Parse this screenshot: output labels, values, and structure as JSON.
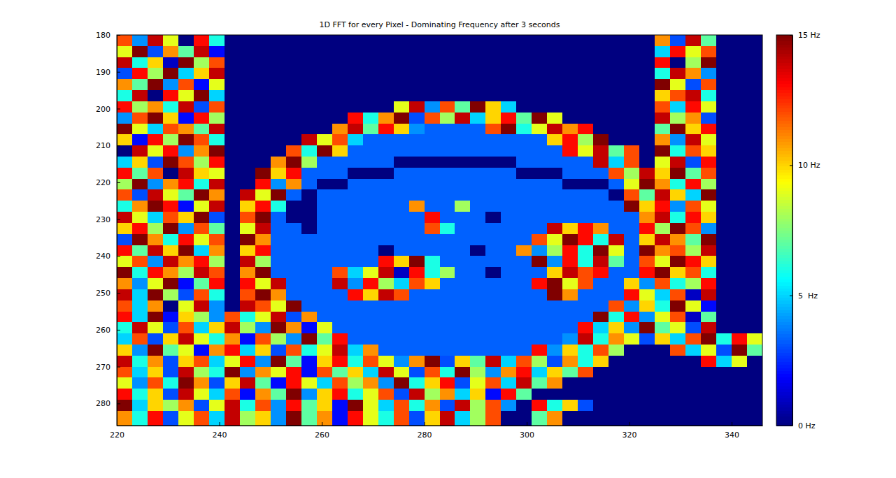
{
  "chart_data": {
    "type": "heatmap",
    "title": "1D FFT for every Pixel - Dominating Frequency after 3 seconds",
    "color": "jet",
    "xlim": [
      220,
      346
    ],
    "ylim": [
      180,
      286
    ],
    "xticks": [
      220,
      240,
      260,
      280,
      300,
      320,
      340
    ],
    "yticks": [
      180,
      190,
      200,
      210,
      220,
      230,
      240,
      250,
      260,
      270,
      280
    ],
    "x_edges": [
      220,
      223,
      226,
      229,
      232,
      235,
      238,
      241,
      244,
      247,
      250,
      253,
      256,
      259,
      262,
      265,
      268,
      271,
      274,
      277,
      280,
      283,
      286,
      289,
      292,
      295,
      298,
      301,
      304,
      307,
      310,
      313,
      316,
      319,
      322,
      325,
      328,
      331,
      334,
      337,
      340,
      343,
      346
    ],
    "y_edges": [
      180,
      183,
      186,
      189,
      192,
      195,
      198,
      201,
      204,
      207,
      210,
      213,
      216,
      219,
      222,
      225,
      228,
      231,
      234,
      237,
      240,
      243,
      246,
      249,
      252,
      255,
      258,
      261,
      264,
      267,
      270,
      273,
      276,
      279,
      282,
      286
    ],
    "colorbar": {
      "range": [
        0,
        15
      ],
      "ticks": [
        {
          "value": 0,
          "label": "0 Hz"
        },
        {
          "value": 5,
          "label": "5  Hz"
        },
        {
          "value": 10,
          "label": "10 Hz"
        },
        {
          "value": 15,
          "label": "15 Hz"
        }
      ]
    },
    "cells": [
      [
        12,
        4,
        14,
        9,
        0,
        13,
        6,
        0,
        0,
        0,
        0,
        0,
        0,
        0,
        0,
        0,
        0,
        0,
        0,
        0,
        0,
        0,
        0,
        0,
        0,
        0,
        0,
        0,
        0,
        0,
        0,
        0,
        0,
        0,
        0,
        11,
        3,
        14,
        7,
        0,
        0,
        0
      ],
      [
        9,
        15,
        3,
        11,
        7,
        14,
        2,
        0,
        0,
        0,
        0,
        0,
        0,
        0,
        0,
        0,
        0,
        0,
        0,
        0,
        0,
        0,
        0,
        0,
        0,
        0,
        0,
        0,
        0,
        0,
        0,
        0,
        0,
        0,
        0,
        5,
        13,
        9,
        12,
        0,
        0,
        0
      ],
      [
        14,
        6,
        10,
        1,
        15,
        8,
        12,
        0,
        0,
        0,
        0,
        0,
        0,
        0,
        0,
        0,
        0,
        0,
        0,
        0,
        0,
        0,
        0,
        0,
        0,
        0,
        0,
        0,
        0,
        0,
        0,
        0,
        0,
        0,
        0,
        13,
        0,
        8,
        15,
        0,
        0,
        0
      ],
      [
        3,
        13,
        8,
        15,
        5,
        10,
        14,
        0,
        0,
        0,
        0,
        0,
        0,
        0,
        0,
        0,
        0,
        0,
        0,
        0,
        0,
        0,
        0,
        0,
        0,
        0,
        0,
        0,
        0,
        0,
        0,
        0,
        0,
        0,
        0,
        6,
        14,
        11,
        4,
        0,
        0,
        0
      ],
      [
        11,
        7,
        15,
        4,
        12,
        2,
        9,
        0,
        0,
        0,
        0,
        0,
        0,
        0,
        0,
        0,
        0,
        0,
        0,
        0,
        0,
        0,
        0,
        0,
        0,
        0,
        0,
        0,
        0,
        0,
        0,
        0,
        0,
        0,
        0,
        15,
        9,
        3,
        12,
        0,
        0,
        0
      ],
      [
        6,
        14,
        0,
        13,
        9,
        15,
        5,
        0,
        0,
        0,
        0,
        0,
        0,
        0,
        0,
        0,
        0,
        0,
        0,
        0,
        0,
        0,
        0,
        0,
        0,
        0,
        0,
        0,
        0,
        0,
        0,
        0,
        0,
        0,
        0,
        10,
        12,
        14,
        6,
        0,
        0,
        0
      ],
      [
        13,
        8,
        11,
        6,
        14,
        3,
        12,
        0,
        0,
        0,
        0,
        0,
        0,
        0,
        0,
        0,
        0,
        0,
        9,
        14,
        4,
        12,
        7,
        15,
        10,
        5,
        0,
        0,
        0,
        0,
        0,
        0,
        0,
        0,
        0,
        12,
        5,
        13,
        9,
        0,
        0,
        0
      ],
      [
        4,
        12,
        15,
        10,
        2,
        13,
        8,
        0,
        0,
        0,
        0,
        0,
        0,
        0,
        0,
        13,
        6,
        11,
        15,
        3,
        12,
        8,
        14,
        5,
        10,
        13,
        7,
        15,
        9,
        0,
        0,
        0,
        0,
        0,
        0,
        14,
        8,
        11,
        3,
        0,
        0,
        0
      ],
      [
        15,
        9,
        5,
        12,
        11,
        7,
        14,
        0,
        0,
        0,
        0,
        0,
        0,
        0,
        11,
        14,
        7,
        13,
        10,
        4,
        3.3,
        3.3,
        3.3,
        3.3,
        12,
        15,
        6,
        9,
        14,
        11,
        13,
        0,
        0,
        0,
        0,
        7,
        15,
        10,
        13,
        0,
        0,
        0
      ],
      [
        10,
        2,
        13,
        8,
        15,
        12,
        6,
        0,
        0,
        0,
        0,
        0,
        14,
        9,
        12,
        5,
        3.3,
        3.3,
        3.3,
        3.3,
        3.3,
        3.3,
        3.3,
        3.3,
        3.3,
        3.3,
        3.3,
        3.3,
        10,
        13,
        8,
        15,
        0,
        0,
        0,
        11,
        4,
        14,
        9,
        0,
        0,
        0
      ],
      [
        0,
        14,
        9,
        13,
        4,
        11,
        15,
        0,
        0,
        0,
        0,
        12,
        6,
        15,
        10,
        3.3,
        3.3,
        3.3,
        3.3,
        3.3,
        3.3,
        3.3,
        3.3,
        3.3,
        3.3,
        3.3,
        3.3,
        3.3,
        3.3,
        13,
        9,
        14,
        7,
        12,
        0,
        15,
        6,
        12,
        10,
        0,
        0,
        0
      ],
      [
        5,
        10,
        3,
        15,
        12,
        8,
        13,
        0,
        0,
        0,
        11,
        15,
        8,
        3.3,
        3.3,
        3.3,
        3.3,
        3.3,
        0,
        0,
        0,
        0,
        0,
        0,
        0,
        0,
        3.3,
        3.3,
        3.3,
        3.3,
        3.3,
        14,
        5,
        12,
        0,
        9,
        14,
        3,
        13,
        0,
        0,
        0
      ],
      [
        13,
        7,
        12,
        0,
        14,
        10,
        9,
        0,
        0,
        15,
        10,
        13,
        3.3,
        3.3,
        3.3,
        0,
        0,
        0,
        3.3,
        3.3,
        3.3,
        3.3,
        3.3,
        3.3,
        3.3,
        3.3,
        0,
        0,
        0,
        3.3,
        3.3,
        3.3,
        12,
        8,
        14,
        10,
        15,
        7,
        12,
        0,
        0,
        0
      ],
      [
        8,
        15,
        4,
        11,
        13,
        6,
        14,
        0,
        0,
        13,
        4,
        11,
        3.3,
        0,
        0,
        3.3,
        3.3,
        3.3,
        3.3,
        3.3,
        3.3,
        3.3,
        3.3,
        3.3,
        3.3,
        3.3,
        3.3,
        3.3,
        3.3,
        0,
        0,
        0,
        3.3,
        9,
        15,
        11,
        6,
        13,
        8,
        0,
        0,
        0
      ],
      [
        12,
        3,
        14,
        9,
        7,
        15,
        11,
        0,
        14,
        9,
        15,
        3.3,
        0,
        3.3,
        3.3,
        3.3,
        3.3,
        3.3,
        3.3,
        3.3,
        3.3,
        3.3,
        3.3,
        3.3,
        3.3,
        3.3,
        3.3,
        3.3,
        3.3,
        3.3,
        3.3,
        3.3,
        0,
        12,
        7,
        14,
        10,
        5,
        15,
        0,
        0,
        0
      ],
      [
        6,
        11,
        15,
        13,
        2,
        9,
        14,
        0,
        10,
        13,
        6,
        0,
        0,
        3.3,
        3.3,
        3.3,
        3.3,
        3.3,
        3.3,
        11,
        3.3,
        3.3,
        8,
        3.3,
        3.3,
        3.3,
        3.3,
        3.3,
        3.3,
        3.3,
        3.3,
        3.3,
        3.3,
        15,
        10,
        13,
        4,
        12,
        9,
        0,
        0,
        0
      ],
      [
        14,
        9,
        5,
        12,
        10,
        15,
        3,
        0,
        12,
        15,
        3.3,
        0,
        0,
        3.3,
        3.3,
        3.3,
        3.3,
        3.3,
        3.3,
        3.3,
        13,
        3.3,
        3.3,
        3.3,
        0,
        3.3,
        3.3,
        3.3,
        3.3,
        3.3,
        3.3,
        3.3,
        3.3,
        3.3,
        11,
        14,
        6,
        13,
        10,
        0,
        0,
        0
      ],
      [
        10,
        13,
        8,
        15,
        4,
        12,
        7,
        0,
        9,
        14,
        3.3,
        3.3,
        0,
        3.3,
        3.3,
        3.3,
        3.3,
        3.3,
        3.3,
        3.3,
        12,
        6,
        3.3,
        3.3,
        3.3,
        3.3,
        3.3,
        3.3,
        14,
        10,
        13,
        11,
        3.3,
        3.3,
        13,
        8,
        15,
        12,
        4,
        0,
        0,
        0
      ],
      [
        3,
        15,
        11,
        6,
        13,
        9,
        12,
        0,
        15,
        11,
        3.3,
        3.3,
        3.3,
        3.3,
        3.3,
        3.3,
        3.3,
        3.3,
        3.3,
        3.3,
        3.3,
        3.3,
        3.3,
        3.3,
        3.3,
        3.3,
        3.3,
        12,
        9,
        15,
        13,
        6,
        14,
        3.3,
        10,
        14,
        11,
        7,
        15,
        0,
        0,
        0
      ],
      [
        13,
        7,
        14,
        10,
        15,
        5,
        11,
        0,
        10,
        13,
        3.3,
        3.3,
        3.3,
        3.3,
        3.3,
        3.3,
        3.3,
        0,
        3.3,
        3.3,
        3.3,
        3.3,
        3.3,
        0,
        3.3,
        3.3,
        11,
        4,
        8,
        13,
        6,
        15,
        9,
        3.3,
        15,
        11,
        12,
        8,
        14,
        0,
        0,
        0
      ],
      [
        9,
        12,
        4,
        14,
        11,
        13,
        8,
        0,
        14,
        8,
        3.3,
        3.3,
        3.3,
        3.3,
        3.3,
        3.3,
        3.3,
        13,
        10,
        15,
        6,
        3.3,
        3.3,
        3.3,
        3.3,
        3.3,
        3.3,
        15,
        4,
        13,
        6,
        14,
        7,
        3.3,
        12,
        9,
        15,
        13,
        10,
        0,
        0,
        0
      ],
      [
        15,
        6,
        13,
        11,
        8,
        14,
        12,
        0,
        11,
        15,
        3.3,
        3.3,
        3.3,
        3.3,
        12,
        5,
        9,
        14,
        1,
        13,
        6,
        8,
        3.3,
        3.3,
        0,
        3.3,
        3.3,
        3.3,
        10,
        14,
        12,
        13,
        3.3,
        3.3,
        13,
        15,
        10,
        12,
        6,
        0,
        0,
        0
      ],
      [
        11,
        4,
        9,
        15,
        2,
        7,
        13,
        0,
        13,
        9,
        14,
        3.3,
        3.3,
        3.3,
        14,
        4,
        13,
        8,
        5,
        12,
        10,
        3.3,
        3.3,
        3.3,
        3.3,
        3.3,
        3.3,
        13,
        15,
        9,
        12,
        3.3,
        3.3,
        10,
        4,
        12,
        6,
        8,
        13,
        0,
        0,
        0
      ],
      [
        14,
        5,
        15,
        8,
        3,
        12,
        6,
        0,
        12,
        15,
        11,
        3.3,
        3.3,
        3.3,
        3.3,
        13,
        10,
        14,
        12,
        3.3,
        3.3,
        3.3,
        3.3,
        3.3,
        3.3,
        3.3,
        3.3,
        3.3,
        15,
        11,
        3.3,
        3.3,
        3.3,
        13,
        9,
        5,
        12,
        1,
        14,
        0,
        0,
        0
      ],
      [
        12,
        5,
        11,
        0,
        9,
        14,
        4,
        0,
        14,
        12,
        9,
        15,
        3.3,
        3.3,
        3.3,
        3.3,
        3.3,
        3.3,
        3.3,
        3.3,
        3.3,
        3.3,
        3.3,
        3.3,
        3.3,
        3.3,
        3.3,
        3.3,
        3.3,
        3.3,
        3.3,
        3.3,
        12,
        4,
        10,
        6,
        15,
        9,
        2,
        0,
        0,
        0
      ],
      [
        13,
        5,
        15,
        2,
        10,
        8,
        4,
        12,
        6,
        9,
        14,
        3,
        11,
        3.3,
        3.3,
        3.3,
        3.3,
        3.3,
        3.3,
        3.3,
        3.3,
        3.3,
        3.3,
        3.3,
        3.3,
        3.3,
        3.3,
        3.3,
        3.3,
        3.3,
        3.3,
        15,
        6,
        13,
        4,
        9,
        12,
        1,
        7,
        0,
        0,
        0
      ],
      [
        6,
        14,
        9,
        3,
        12,
        5,
        10,
        14,
        8,
        4,
        15,
        11,
        2,
        9,
        3.3,
        3.3,
        3.3,
        3.3,
        3.3,
        3.3,
        3.3,
        3.3,
        3.3,
        3.3,
        3.3,
        3.3,
        3.3,
        3.3,
        3.3,
        3.3,
        13,
        5,
        10,
        4,
        15,
        7,
        9,
        3,
        14,
        0,
        0,
        0
      ],
      [
        5,
        12,
        3,
        10,
        14,
        9,
        6,
        11,
        2,
        12,
        8,
        4,
        15,
        7,
        13,
        3.3,
        3.3,
        3.3,
        3.3,
        3.3,
        3.3,
        3.3,
        3.3,
        3.3,
        3.3,
        3.3,
        3.3,
        3.3,
        3.3,
        4,
        14,
        6,
        11,
        9,
        3,
        10,
        5,
        12,
        15,
        6,
        13,
        9
      ],
      [
        10,
        4,
        15,
        7,
        9,
        2,
        11,
        13,
        5,
        10,
        3,
        12,
        6,
        9,
        14,
        5,
        11,
        3.3,
        3.3,
        3.3,
        3.3,
        3.3,
        3.3,
        3.3,
        3.3,
        3.3,
        3.3,
        13,
        4,
        10,
        6,
        12,
        8,
        0,
        0,
        0,
        12,
        5,
        9,
        3,
        15,
        7
      ],
      [
        14,
        6,
        11,
        3,
        10,
        12,
        5,
        9,
        13,
        4,
        15,
        7,
        2,
        10,
        13,
        6,
        12,
        9,
        4,
        11,
        15,
        3,
        10,
        7,
        14,
        5,
        12,
        8,
        3,
        11,
        6,
        10,
        0,
        0,
        0,
        0,
        0,
        0,
        13,
        5,
        9,
        0
      ],
      [
        12,
        5,
        10,
        3,
        14,
        8,
        6,
        15,
        4,
        11,
        9,
        13,
        2,
        12,
        7,
        10,
        5,
        14,
        9,
        3,
        12,
        6,
        15,
        8,
        4,
        11,
        13,
        5,
        10,
        7,
        12,
        0,
        0,
        0,
        0,
        0,
        0,
        0,
        0,
        0,
        0,
        0
      ],
      [
        9,
        4,
        12,
        6,
        15,
        11,
        3,
        10,
        14,
        7,
        2,
        13,
        9,
        5,
        12,
        8,
        11,
        4,
        15,
        6,
        10,
        13,
        3,
        9,
        12,
        5,
        14,
        7,
        11,
        0,
        0,
        0,
        0,
        0,
        0,
        0,
        0,
        0,
        0,
        0,
        0,
        0
      ],
      [
        13,
        6,
        10,
        3,
        14,
        9,
        5,
        12,
        2,
        11,
        7,
        15,
        4,
        10,
        13,
        6,
        9,
        12,
        3,
        14,
        8,
        11,
        5,
        10,
        2,
        13,
        7,
        0,
        0,
        0,
        0,
        0,
        0,
        0,
        0,
        0,
        0,
        0,
        0,
        0,
        0,
        0
      ],
      [
        15,
        5,
        10,
        8,
        11,
        3,
        9,
        14,
        6,
        12,
        4,
        13,
        7,
        10,
        2,
        15,
        9,
        5,
        12,
        6,
        11,
        3,
        14,
        8,
        12,
        4,
        0,
        13,
        6,
        10,
        3,
        0,
        0,
        0,
        0,
        0,
        0,
        0,
        0,
        0,
        0,
        0
      ],
      [
        11,
        6,
        13,
        3,
        9,
        12,
        5,
        14,
        8,
        10,
        4,
        15,
        7,
        11,
        2,
        13,
        9,
        6,
        12,
        3,
        10,
        14,
        5,
        8,
        12,
        0,
        0,
        7,
        11,
        0,
        0,
        0,
        0,
        0,
        0,
        0,
        0,
        0,
        0,
        0,
        0,
        0
      ]
    ]
  }
}
